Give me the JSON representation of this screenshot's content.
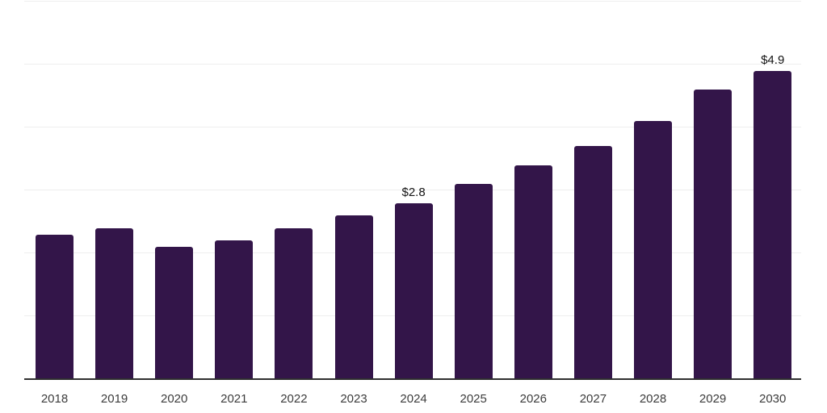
{
  "chart_data": {
    "type": "bar",
    "title": "",
    "xlabel": "",
    "ylabel": "",
    "categories": [
      "2018",
      "2019",
      "2020",
      "2021",
      "2022",
      "2023",
      "2024",
      "2025",
      "2026",
      "2027",
      "2028",
      "2029",
      "2030"
    ],
    "values": [
      2.3,
      2.4,
      2.1,
      2.2,
      2.4,
      2.6,
      2.8,
      3.1,
      3.4,
      3.7,
      4.1,
      4.6,
      4.9
    ],
    "data_labels": [
      {
        "category": "2024",
        "text": "$2.8"
      },
      {
        "category": "2030",
        "text": "$4.9"
      }
    ],
    "ylim": [
      0,
      6
    ],
    "grid": "horizontal, every 1 unit, no y tick labels",
    "legend": "none",
    "bar_color": "#331549",
    "gridline_color": "#eeeeee",
    "axis_line_color": "#2f2f2f",
    "tick_label_color": "#3c3c3c",
    "value_label_color": "#141414"
  }
}
